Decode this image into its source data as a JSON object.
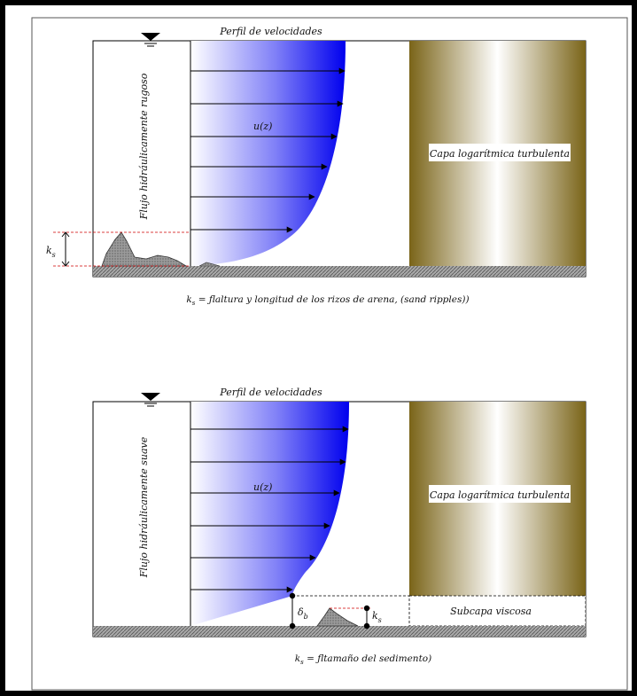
{
  "colors": {
    "outer_border": "#000000",
    "flow_blue_dark": "#0000ee",
    "flow_blue_light": "#ffffff",
    "log_layer_dark": "#7a6418",
    "log_layer_light": "#ffffff",
    "bed": "#9a9a9a",
    "dimension_lines": "#d00000"
  },
  "top_panel": {
    "velocity_profile_title": "Perfil de velocidades",
    "flow_regime_label": "Flujo hidráulicamente rugoso",
    "velocity_label": "u(z)",
    "log_layer_label": "Capa logarítmica turbulenta",
    "ks_label": "k",
    "ks_subscript": "s",
    "caption_k": "k",
    "caption_sub": "s",
    "caption_text": " = ƒlaltura y longitud de los rizos de arena, (sand ripples))"
  },
  "bottom_panel": {
    "velocity_profile_title": "Perfil de velocidades",
    "flow_regime_label": "Flujo hidráulicamente suave",
    "velocity_label": "u(z)",
    "log_layer_label": "Capa logarítmica turbulenta",
    "viscous_sublayer_label": "Subcapa viscosa",
    "delta_label": "δ",
    "delta_subscript": "b",
    "ks_label": "k",
    "ks_subscript": "s",
    "caption_k": "k",
    "caption_sub": "s",
    "caption_text": " = ƒltamaño del sedimento)"
  },
  "icons": {
    "water_surface": "inverted-triangle-water-level-icon"
  }
}
